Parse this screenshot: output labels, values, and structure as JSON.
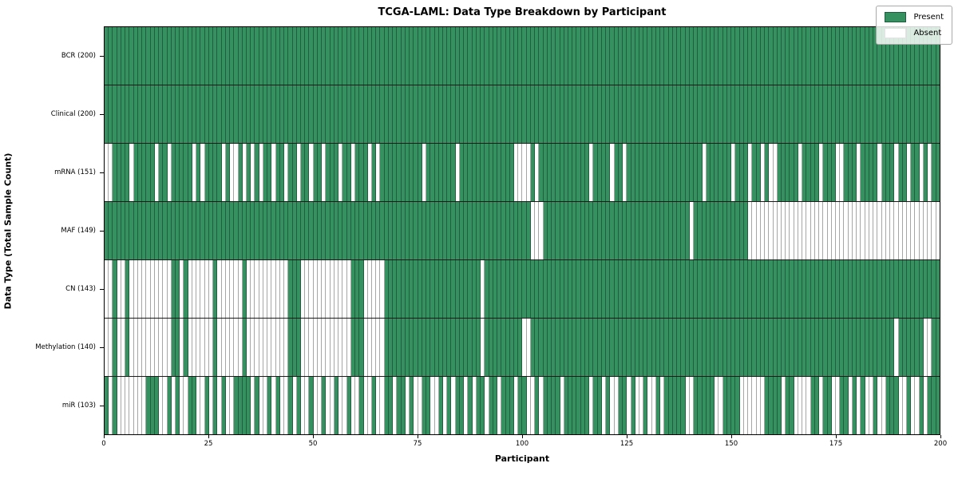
{
  "chart_data": {
    "type": "heatmap",
    "title": "TCGA-LAML: Data Type Breakdown by Participant",
    "xlabel": "Participant",
    "ylabel": "Data Type (Total Sample Count)",
    "x_range": [
      0,
      200
    ],
    "n_participants": 200,
    "xticks": [
      0,
      25,
      50,
      75,
      100,
      125,
      150,
      175,
      200
    ],
    "grid": false,
    "legend": {
      "position": "upper right",
      "entries": [
        {
          "label": "Present",
          "color": "#35915f"
        },
        {
          "label": "Absent",
          "color": "#ffffff"
        }
      ]
    },
    "colors": {
      "present": "#35915f",
      "absent": "#ffffff",
      "cell_border": "rgba(0,0,0,0.35)",
      "row_separator": "#1b1b1b",
      "axis": "#000000"
    },
    "rows": [
      {
        "key": "BCR",
        "label": "BCR (200)",
        "present_count": 200,
        "mask": "11111111111111111111111111111111111111111111111111111111111111111111111111111111111111111111111111111111111111111111111111111111111111111111111111111111111111111111111111111111111111111111111111111111"
      },
      {
        "key": "Clinical",
        "label": "Clinical (200)",
        "present_count": 200,
        "mask": "11111111111111111111111111111111111111111111111111111111111111111111111111111111111111111111111111111111111111111111111111111111111111111111111111111111111111111111111111111111111111111111111111111111"
      },
      {
        "key": "mRNA",
        "label": "mRNA (151)",
        "present_count": 151,
        "mask": "0011110111110110111110101111010010101011011011011011011101101110101111111111011111110111111111111100001011111111111101111011011111111111111111101111110111011010011111011110111001110111101110110110101101"
      },
      {
        "key": "MAF",
        "label": "MAF (149)",
        "present_count": 149,
        "mask": "11111111111111111111111111111111111111111111111111111111111111111111111111111111111111111111111111111100011111111111111111111111111111111111011111111111110000000000000000000000000000000000000000000000"
      },
      {
        "key": "CN",
        "label": "CN (143)",
        "present_count": 143,
        "mask": "0010010000000000110100000010000001000000000011100000000000011100000111111111111111111111110111111111111111111111111111111111111111111111111111111111111111111111111111111111111111111111111111111111111100"
      },
      {
        "key": "Methylation",
        "label": "Methylation (140)",
        "present_count": 140,
        "mask": "0010010000000000110100000010000001000000000011100000000000011100000111111111111111111111110111111111001111111111111111111111111111111111111111111111111111111111111111111111111111111111111110111111001111"
      },
      {
        "key": "miR",
        "label": "miR (103)",
        "present_count": 103,
        "mask": "1010000000111001010011001010100111101001010010100100100100100100100110110100110010101101011011011101100101111011111101101001101001001011111001111100111100000011110110000110110011010100100111001001011101"
      }
    ]
  }
}
